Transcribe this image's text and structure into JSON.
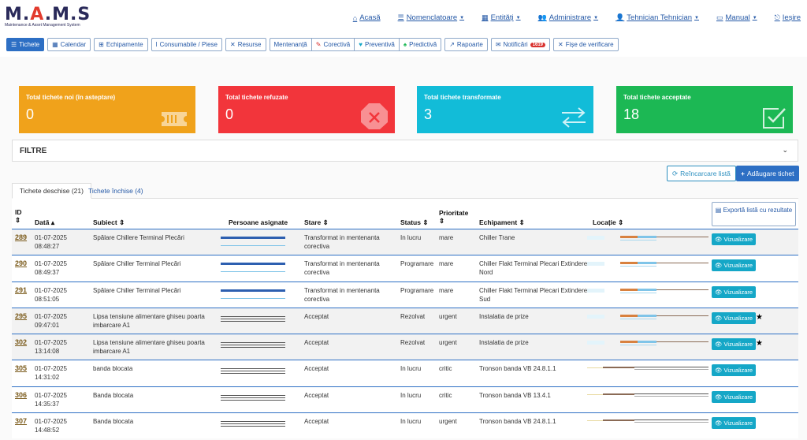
{
  "logo": {
    "main_a": "M",
    "main_b": "A",
    "main_c": "M",
    "main_d": "S",
    "sub": "Maintenance & Asset Management System"
  },
  "topnav": [
    {
      "label": "Acasă",
      "icon": "home-icon",
      "caret": false
    },
    {
      "label": "Nomenclatoare",
      "icon": "list-icon",
      "caret": true
    },
    {
      "label": "Entități",
      "icon": "table-icon",
      "caret": true
    },
    {
      "label": "Administrare",
      "icon": "users-icon",
      "caret": true
    },
    {
      "label": "Tehnician Tehnician",
      "icon": "user-icon",
      "caret": true
    },
    {
      "label": "Manual",
      "icon": "book-icon",
      "caret": true
    },
    {
      "label": "Ieșire",
      "icon": "logout-icon",
      "caret": false
    }
  ],
  "toolbar": {
    "tichete": "Tichete",
    "calendar": "Calendar",
    "echipamente": "Echipamente",
    "consumabile": "Consumabile / Piese",
    "resurse": "Resurse",
    "mentenanta": "Mentenanță",
    "corectiva": "Corectivă",
    "preventiva": "Preventivă",
    "predictiva": "Predictivă",
    "rapoarte": "Rapoarte",
    "notificari": "Notificări",
    "notificari_badge": "1619",
    "fise": "Fișe de verificare"
  },
  "cards": [
    {
      "title": "Total tichete noi (în asteptare)",
      "value": "0",
      "color": "#f0a21b",
      "icon": "ticket-icon"
    },
    {
      "title": "Total tichete refuzate",
      "value": "0",
      "color": "#f2353b",
      "icon": "stop-icon"
    },
    {
      "title": "Total tichete transformate",
      "value": "3",
      "color": "#12bcd8",
      "icon": "exchange-icon"
    },
    {
      "title": "Total tichete acceptate",
      "value": "18",
      "color": "#1cb854",
      "icon": "check-square-icon"
    }
  ],
  "filters": {
    "title": "FILTRE"
  },
  "actions": {
    "reload": "Reîncarcare listă",
    "add": "Adăugare tichet"
  },
  "subtabs": {
    "open": "Tichete deschise (21)",
    "closed": "Tichete închise (4)"
  },
  "table": {
    "headers": {
      "id": "ID",
      "data": "Dată",
      "subiect": "Subiect",
      "persoane": "Persoane asignate",
      "stare": "Stare",
      "status": "Status",
      "prioritate": "Prioritate",
      "echipament": "Echipament",
      "locatie": "Locație"
    },
    "export": "Exportă listă cu rezultate",
    "view_label": "Vizualizare",
    "rows": [
      {
        "id": "289",
        "date": "01-07-2025",
        "time": "08:48:27",
        "subject": "Spălare Chillere Terminal Plecări",
        "subject2": "",
        "stare": "Transformat in mentenanta",
        "stare2": "corectiva",
        "status": "In lucru",
        "prioritate": "mare",
        "echipament": "Chiller Trane",
        "echipament2": "",
        "shaded": true,
        "star": false,
        "assign": "blue",
        "loc": "orange"
      },
      {
        "id": "290",
        "date": "01-07-2025",
        "time": "08:49:37",
        "subject": "Spălare Chiller Terminal Plecări",
        "subject2": "",
        "stare": "Transformat in mentenanta",
        "stare2": "corectiva",
        "status": "Programare",
        "prioritate": "mare",
        "echipament": "Chiller Flakt Terminal Plecari Extindere",
        "echipament2": "Nord",
        "shaded": false,
        "star": false,
        "assign": "blue",
        "loc": "orange"
      },
      {
        "id": "291",
        "date": "01-07-2025",
        "time": "08:51:05",
        "subject": "Spălare Chiller Terminal Plecări",
        "subject2": "",
        "stare": "Transformat in mentenanta",
        "stare2": "corectiva",
        "status": "Programare",
        "prioritate": "mare",
        "echipament": "Chiller Flakt Terminal Plecari Extindere",
        "echipament2": "Sud",
        "shaded": false,
        "star": false,
        "assign": "blue",
        "loc": "orange"
      },
      {
        "id": "295",
        "date": "01-07-2025",
        "time": "09:47:01",
        "subject": "Lipsa tensiune alimentare ghiseu poarta",
        "subject2": "imbarcare A1",
        "stare": "Acceptat",
        "stare2": "",
        "status": "Rezolvat",
        "prioritate": "urgent",
        "echipament": "Instalatia de prize",
        "echipament2": "",
        "shaded": true,
        "star": true,
        "assign": "gray",
        "loc": "orange"
      },
      {
        "id": "302",
        "date": "01-07-2025",
        "time": "13:14:08",
        "subject": "Lipsa tensiune alimentare ghiseu poarta",
        "subject2": "imbarcare A1",
        "stare": "Acceptat",
        "stare2": "",
        "status": "Rezolvat",
        "prioritate": "urgent",
        "echipament": "Instalatia de prize",
        "echipament2": "",
        "shaded": true,
        "star": true,
        "assign": "gray",
        "loc": "orange"
      },
      {
        "id": "305",
        "date": "01-07-2025",
        "time": "14:31:02",
        "subject": "banda blocata",
        "subject2": "",
        "stare": "Acceptat",
        "stare2": "",
        "status": "In lucru",
        "prioritate": "critic",
        "echipament": "Tronson banda VB 24.8.1.1",
        "echipament2": "",
        "shaded": false,
        "star": false,
        "assign": "gray",
        "loc": "brown"
      },
      {
        "id": "306",
        "date": "01-07-2025",
        "time": "14:35:37",
        "subject": "Banda blocata",
        "subject2": "",
        "stare": "Acceptat",
        "stare2": "",
        "status": "In lucru",
        "prioritate": "critic",
        "echipament": "Tronson banda VB 13.4.1",
        "echipament2": "",
        "shaded": false,
        "star": false,
        "assign": "gray",
        "loc": "brown"
      },
      {
        "id": "307",
        "date": "01-07-2025",
        "time": "14:48:52",
        "subject": "Banda blocata",
        "subject2": "",
        "stare": "Acceptat",
        "stare2": "",
        "status": "In lucru",
        "prioritate": "urgent",
        "echipament": "Tronson banda VB 24.8.1.1",
        "echipament2": "",
        "shaded": false,
        "star": false,
        "assign": "gray",
        "loc": "brown"
      }
    ]
  }
}
